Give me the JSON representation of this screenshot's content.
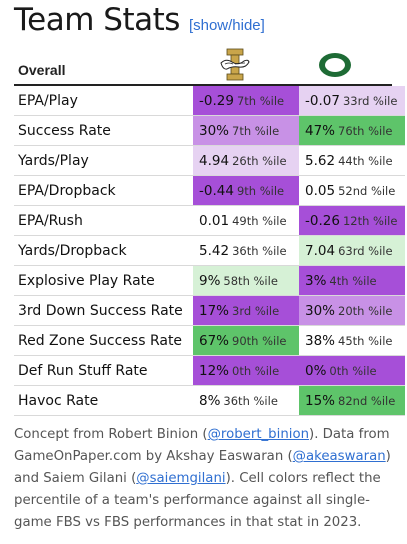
{
  "title": "Team Stats",
  "toggle_label": "[show/hide]",
  "header": {
    "section_label": "Overall",
    "team_a_logo": "idaho-vandals-logo",
    "team_b_logo": "oregon-o-logo"
  },
  "colors": {
    "accent": "#2f6fd1",
    "purple_strong": "#a64fd8",
    "purple_mid": "#c891e6",
    "purple_light": "#e6d2f2",
    "green_strong": "#5ec46a",
    "green_light": "#d6f1d6"
  },
  "rows": [
    {
      "stat": "EPA/Play",
      "a_val": "-0.29",
      "a_pct": "7th %ile",
      "b_val": "-0.07",
      "b_pct": "33rd %ile"
    },
    {
      "stat": "Success Rate",
      "a_val": "30%",
      "a_pct": "7th %ile",
      "b_val": "47%",
      "b_pct": "76th %ile"
    },
    {
      "stat": "Yards/Play",
      "a_val": "4.94",
      "a_pct": "26th %ile",
      "b_val": "5.62",
      "b_pct": "44th %ile"
    },
    {
      "stat": "EPA/Dropback",
      "a_val": "-0.44",
      "a_pct": "9th %ile",
      "b_val": "0.05",
      "b_pct": "52nd %ile"
    },
    {
      "stat": "EPA/Rush",
      "a_val": "0.01",
      "a_pct": "49th %ile",
      "b_val": "-0.26",
      "b_pct": "12th %ile"
    },
    {
      "stat": "Yards/Dropback",
      "a_val": "5.42",
      "a_pct": "36th %ile",
      "b_val": "7.04",
      "b_pct": "63rd %ile"
    },
    {
      "stat": "Explosive Play Rate",
      "a_val": "9%",
      "a_pct": "58th %ile",
      "b_val": "3%",
      "b_pct": "4th %ile"
    },
    {
      "stat": "3rd Down Success Rate",
      "a_val": "17%",
      "a_pct": "3rd %ile",
      "b_val": "30%",
      "b_pct": "20th %ile"
    },
    {
      "stat": "Red Zone Success Rate",
      "a_val": "67%",
      "a_pct": "90th %ile",
      "b_val": "38%",
      "b_pct": "45th %ile"
    },
    {
      "stat": "Def Run Stuff Rate",
      "a_val": "12%",
      "a_pct": "0th %ile",
      "b_val": "0%",
      "b_pct": "0th %ile"
    },
    {
      "stat": "Havoc Rate",
      "a_val": "8%",
      "a_pct": "36th %ile",
      "b_val": "15%",
      "b_pct": "82nd %ile"
    }
  ],
  "cell_colors": [
    [
      "#a64fd8",
      "#e6d2f2"
    ],
    [
      "#c891e6",
      "#5ec46a"
    ],
    [
      "#e6d2f2",
      "#ffffff"
    ],
    [
      "#a64fd8",
      "#ffffff"
    ],
    [
      "#ffffff",
      "#a64fd8"
    ],
    [
      "#ffffff",
      "#d6f1d6"
    ],
    [
      "#d6f1d6",
      "#a64fd8"
    ],
    [
      "#a64fd8",
      "#c891e6"
    ],
    [
      "#5ec46a",
      "#ffffff"
    ],
    [
      "#a64fd8",
      "#a64fd8"
    ],
    [
      "#ffffff",
      "#5ec46a"
    ]
  ],
  "footnote": {
    "t1": "Concept from Robert Binion (",
    "link1": "@robert_binion",
    "t2": "). Data from GameOnPaper.com by Akshay Easwaran (",
    "link2": "@akeaswaran",
    "t3": ") and Saiem Gilani (",
    "link3": "@saiemgilani",
    "t4": "). Cell colors reflect the percentile of a team's performance against all single-game FBS vs FBS performances in that stat in 2023."
  }
}
